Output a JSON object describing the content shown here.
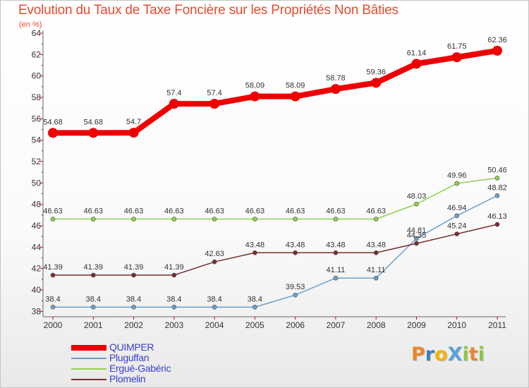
{
  "title": "Evolution du Taux de Taxe Foncière sur les Propriétés Non Bâties",
  "unit_label": "(en %)",
  "brand": {
    "text": "ProXiti",
    "letters": [
      {
        "ch": "P",
        "color": "#e9872b"
      },
      {
        "ch": "r",
        "color": "#3c7ec2"
      },
      {
        "ch": "o",
        "color": "#f0b400"
      },
      {
        "ch": "X",
        "color": "#5aa0d8"
      },
      {
        "ch": "i",
        "color": "#8dc63f"
      },
      {
        "ch": "t",
        "color": "#e9872b"
      },
      {
        "ch": "i",
        "color": "#8dc63f"
      }
    ]
  },
  "chart_data": {
    "type": "line",
    "x": [
      "2000",
      "2001",
      "2002",
      "2003",
      "2004",
      "2005",
      "2006",
      "2007",
      "2008",
      "2009",
      "2010",
      "2011"
    ],
    "ylim": [
      37.5,
      64
    ],
    "yticks": [
      38,
      40,
      42,
      44,
      46,
      48,
      50,
      52,
      54,
      56,
      58,
      60,
      62,
      64
    ],
    "grid": false,
    "legend_position": "bottom-left",
    "series": [
      {
        "name": "QUIMPER",
        "color": "#ee0000",
        "width": 8,
        "marker": 7,
        "values": [
          54.68,
          54.68,
          54.7,
          57.4,
          57.4,
          58.09,
          58.09,
          58.78,
          59.36,
          61.14,
          61.75,
          62.36
        ],
        "labels": [
          "54.68",
          "54.68",
          "54.7",
          "57.4",
          "57.4",
          "58.09",
          "58.09",
          "58.78",
          "59.36",
          "61.14",
          "61.75",
          "62.36"
        ]
      },
      {
        "name": "Pluguffan",
        "color": "#6a9fcf",
        "width": 1.5,
        "marker": 3,
        "values": [
          38.4,
          38.4,
          38.4,
          38.4,
          38.4,
          38.4,
          39.53,
          41.11,
          41.11,
          44.81,
          46.94,
          48.82
        ],
        "labels": [
          "38.4",
          "38.4",
          "38.4",
          "38.4",
          "38.4",
          "38.4",
          "39.53",
          "41.11",
          "41.11",
          "44.81",
          "46.94",
          "48.82"
        ]
      },
      {
        "name": "Ergué-Gabéric",
        "color": "#92d050",
        "width": 1.5,
        "marker": 3,
        "values": [
          46.63,
          46.63,
          46.63,
          46.63,
          46.63,
          46.63,
          46.63,
          46.63,
          46.63,
          48.03,
          49.96,
          50.46
        ],
        "labels": [
          "46.63",
          "46.63",
          "46.63",
          "46.63",
          "46.63",
          "46.63",
          "46.63",
          "46.63",
          "46.63",
          "48.03",
          "49.96",
          "50.46"
        ]
      },
      {
        "name": "Plomelin",
        "color": "#7b2c2c",
        "width": 1.5,
        "marker": 3,
        "values": [
          41.39,
          41.39,
          41.39,
          41.39,
          42.63,
          43.48,
          43.48,
          43.48,
          43.48,
          44.35,
          45.24,
          46.13
        ],
        "labels": [
          "41.39",
          "41.39",
          "41.39",
          "41.39",
          "42.63",
          "43.48",
          "43.48",
          "43.48",
          "43.48",
          "44.35",
          "45.24",
          "46.13"
        ]
      }
    ]
  }
}
